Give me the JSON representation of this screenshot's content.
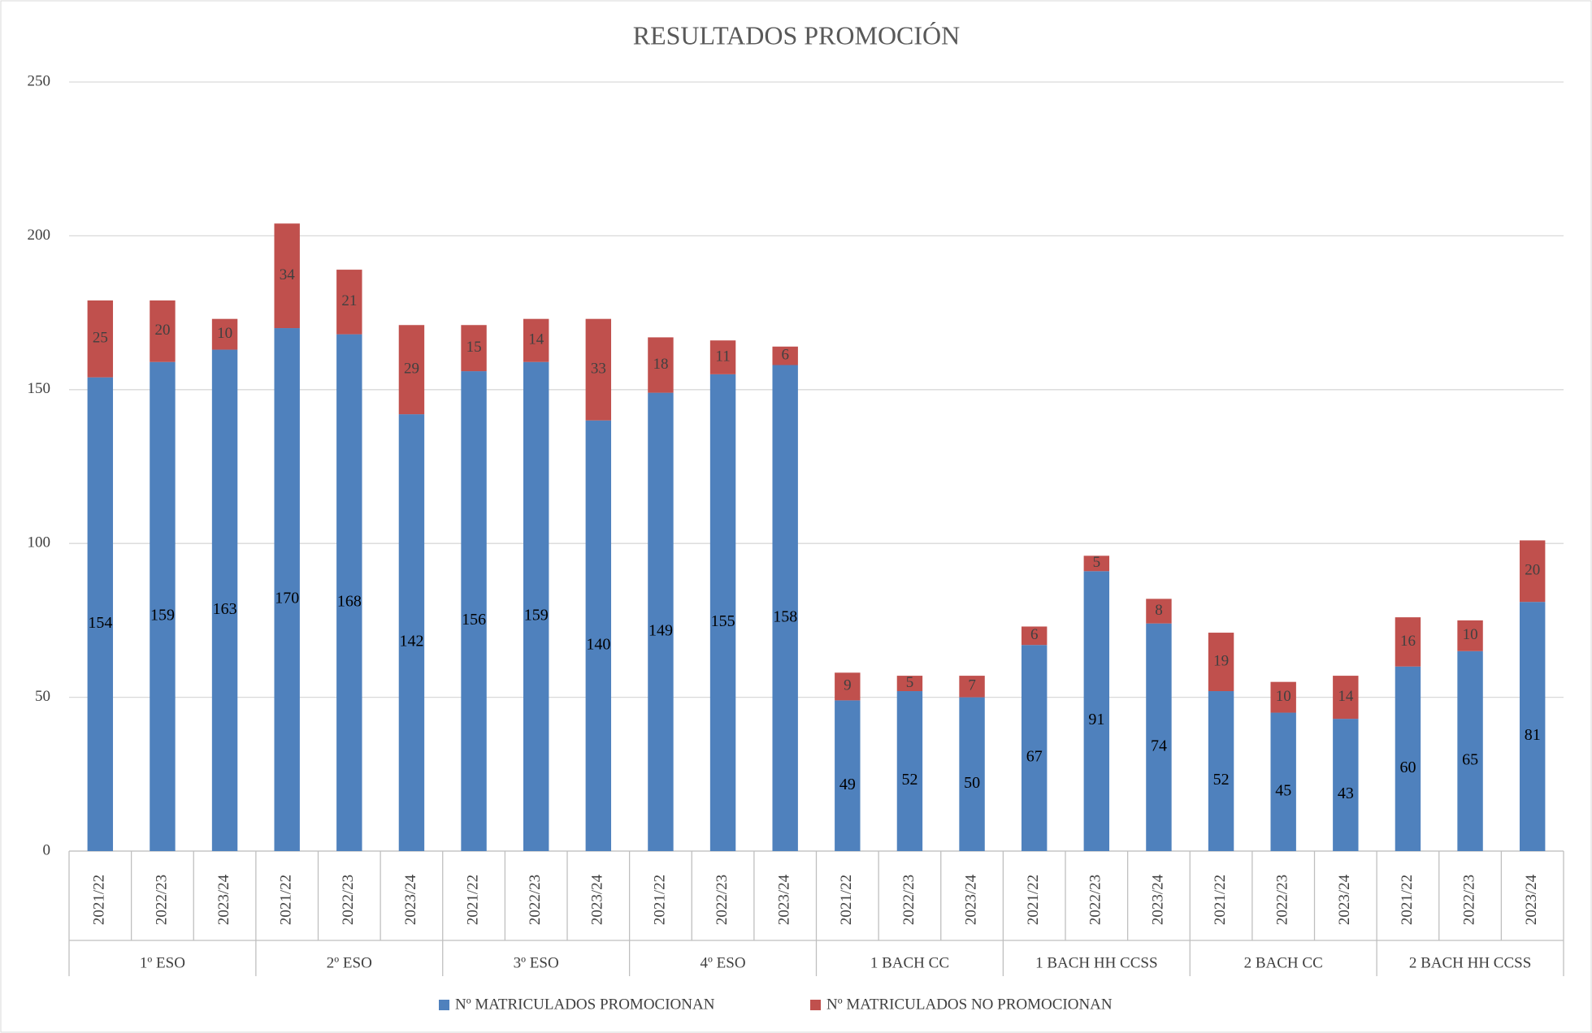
{
  "chart_data": {
    "type": "stacked_bar",
    "title": "RESULTADOS PROMOCIÓN",
    "categories": [
      "2021/22",
      "2022/23",
      "2023/24",
      "2021/22",
      "2022/23",
      "2023/24",
      "2021/22",
      "2022/23",
      "2023/24",
      "2021/22",
      "2022/23",
      "2023/24",
      "2021/22",
      "2022/23",
      "2023/24",
      "2021/22",
      "2022/23",
      "2023/24",
      "2021/22",
      "2022/23",
      "2023/24",
      "2021/22",
      "2022/23",
      "2023/24"
    ],
    "groups": [
      "1º ESO",
      "2º ESO",
      "3º ESO",
      "4º ESO",
      "1 BACH CC",
      "1 BACH HH CCSS",
      "2 BACH CC",
      "2 BACH HH CCSS"
    ],
    "series": [
      {
        "name": "Nº MATRICULADOS PROMOCIONAN",
        "color": "#4f81bd",
        "values": [
          154,
          159,
          163,
          170,
          168,
          142,
          156,
          159,
          140,
          149,
          155,
          158,
          49,
          52,
          50,
          67,
          91,
          74,
          52,
          45,
          43,
          60,
          65,
          81
        ]
      },
      {
        "name": "Nº MATRICULADOS NO PROMOCIONAN",
        "color": "#c0504d",
        "values": [
          25,
          20,
          10,
          34,
          21,
          29,
          15,
          14,
          33,
          18,
          11,
          6,
          9,
          5,
          7,
          6,
          5,
          8,
          19,
          10,
          14,
          16,
          10,
          20
        ]
      }
    ],
    "ylim": [
      0,
      250
    ],
    "yticks": [
      0,
      50,
      100,
      150,
      200,
      250
    ],
    "grid": true,
    "legend": "bottom"
  }
}
